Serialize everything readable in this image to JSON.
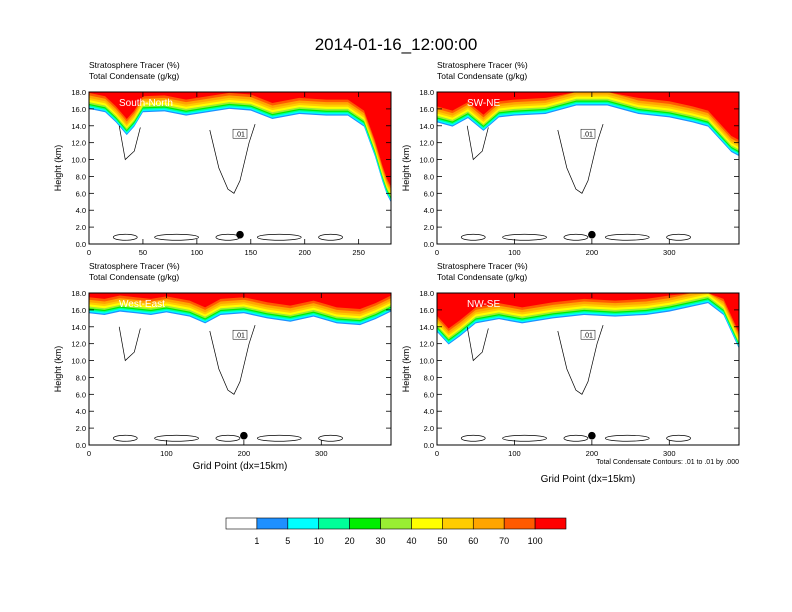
{
  "title": "2014-01-16_12:00:00",
  "colors": {
    "levels": [
      "#ffffff",
      "#1e90ff",
      "#00ffff",
      "#00ff99",
      "#00ee00",
      "#99ee33",
      "#ffff00",
      "#ffcc00",
      "#ffa500",
      "#ff5a00",
      "#ff0000"
    ],
    "contour": "#000000",
    "marker": "#000000"
  },
  "colorbar": {
    "labels": [
      "1",
      "5",
      "10",
      "20",
      "30",
      "40",
      "50",
      "60",
      "70",
      "100"
    ]
  },
  "contour_note": "Total Condensate Contours: .01 to .01 by .000",
  "chart_data": [
    {
      "type": "heatmap",
      "title": "South-North",
      "subtitle_lines": [
        "Stratosphere Tracer   (%)",
        "Total Condensate   (g/kg)"
      ],
      "ylabel": "Height (km)",
      "xlabel": "",
      "xlim": [
        0,
        280
      ],
      "ylim": [
        0,
        18
      ],
      "xticks": [
        0,
        50,
        100,
        150,
        200,
        250
      ],
      "yticks": [
        "0.0",
        "2.0",
        "4.0",
        "6.0",
        "8.0",
        "10.0",
        "12.0",
        "14.0",
        "16.0",
        "18.0"
      ],
      "marker_x": 140,
      "contour_label": ".01",
      "tracer_bottom_km": [
        [
          0,
          15.6
        ],
        [
          15,
          15.2
        ],
        [
          25,
          14.0
        ],
        [
          35,
          12.5
        ],
        [
          42,
          13.5
        ],
        [
          50,
          15.2
        ],
        [
          70,
          15.3
        ],
        [
          90,
          14.8
        ],
        [
          110,
          15.2
        ],
        [
          130,
          15.6
        ],
        [
          150,
          15.4
        ],
        [
          170,
          14.4
        ],
        [
          195,
          15.0
        ],
        [
          220,
          14.8
        ],
        [
          240,
          14.8
        ],
        [
          255,
          13.5
        ],
        [
          265,
          10.0
        ],
        [
          272,
          7.0
        ],
        [
          276,
          5.5
        ],
        [
          280,
          4.5
        ]
      ]
    },
    {
      "type": "heatmap",
      "title": "SW-NE",
      "subtitle_lines": [
        "Stratosphere Tracer   (%)",
        "Total Condensate   (g/kg)"
      ],
      "ylabel": "Height (km)",
      "xlabel": "",
      "xlim": [
        0,
        390
      ],
      "ylim": [
        0,
        18
      ],
      "xticks": [
        0,
        100,
        200,
        300
      ],
      "yticks": [
        "0.0",
        "2.0",
        "4.0",
        "6.0",
        "8.0",
        "10.0",
        "12.0",
        "14.0",
        "16.0",
        "18.0"
      ],
      "marker_x": 200,
      "contour_label": ".01",
      "tracer_bottom_km": [
        [
          0,
          14.0
        ],
        [
          20,
          13.5
        ],
        [
          40,
          14.5
        ],
        [
          60,
          13.0
        ],
        [
          80,
          14.6
        ],
        [
          100,
          14.8
        ],
        [
          140,
          15.0
        ],
        [
          180,
          16.0
        ],
        [
          220,
          16.0
        ],
        [
          260,
          15.0
        ],
        [
          300,
          14.6
        ],
        [
          330,
          14.0
        ],
        [
          350,
          13.5
        ],
        [
          370,
          11.5
        ],
        [
          380,
          10.5
        ],
        [
          390,
          10.0
        ]
      ]
    },
    {
      "type": "heatmap",
      "title": "West-East",
      "subtitle_lines": [
        "Stratosphere Tracer   (%)",
        "Total Condensate   (g/kg)"
      ],
      "ylabel": "Height (km)",
      "xlabel": "Grid Point (dx=15km)",
      "xlim": [
        0,
        390
      ],
      "ylim": [
        0,
        18
      ],
      "xticks": [
        0,
        100,
        200,
        300
      ],
      "yticks": [
        "0.0",
        "2.0",
        "4.0",
        "6.0",
        "8.0",
        "10.0",
        "12.0",
        "14.0",
        "16.0",
        "18.0"
      ],
      "marker_x": 200,
      "contour_label": ".01",
      "tracer_bottom_km": [
        [
          0,
          15.2
        ],
        [
          20,
          15.0
        ],
        [
          40,
          15.4
        ],
        [
          60,
          15.2
        ],
        [
          80,
          15.0
        ],
        [
          100,
          15.3
        ],
        [
          130,
          14.8
        ],
        [
          150,
          14.0
        ],
        [
          170,
          15.0
        ],
        [
          200,
          15.2
        ],
        [
          230,
          14.6
        ],
        [
          260,
          14.2
        ],
        [
          290,
          14.8
        ],
        [
          320,
          14.0
        ],
        [
          350,
          13.8
        ],
        [
          370,
          14.5
        ],
        [
          390,
          15.4
        ]
      ]
    },
    {
      "type": "heatmap",
      "title": "NW-SE",
      "subtitle_lines": [
        "Stratosphere Tracer   (%)",
        "Total Condensate   (g/kg)"
      ],
      "ylabel": "Height (km)",
      "xlabel": "Grid Point (dx=15km)",
      "xlim": [
        0,
        390
      ],
      "ylim": [
        0,
        18
      ],
      "xticks": [
        0,
        100,
        200,
        300
      ],
      "yticks": [
        "0.0",
        "2.0",
        "4.0",
        "6.0",
        "8.0",
        "10.0",
        "12.0",
        "14.0",
        "16.0",
        "18.0"
      ],
      "marker_x": 200,
      "contour_label": ".01",
      "tracer_bottom_km": [
        [
          0,
          13.0
        ],
        [
          15,
          11.5
        ],
        [
          30,
          12.5
        ],
        [
          50,
          14.0
        ],
        [
          80,
          14.5
        ],
        [
          110,
          14.0
        ],
        [
          150,
          14.6
        ],
        [
          190,
          15.0
        ],
        [
          230,
          14.8
        ],
        [
          270,
          15.0
        ],
        [
          300,
          15.4
        ],
        [
          330,
          16.0
        ],
        [
          350,
          16.4
        ],
        [
          370,
          15.0
        ],
        [
          380,
          13.0
        ],
        [
          390,
          11.0
        ]
      ]
    }
  ]
}
